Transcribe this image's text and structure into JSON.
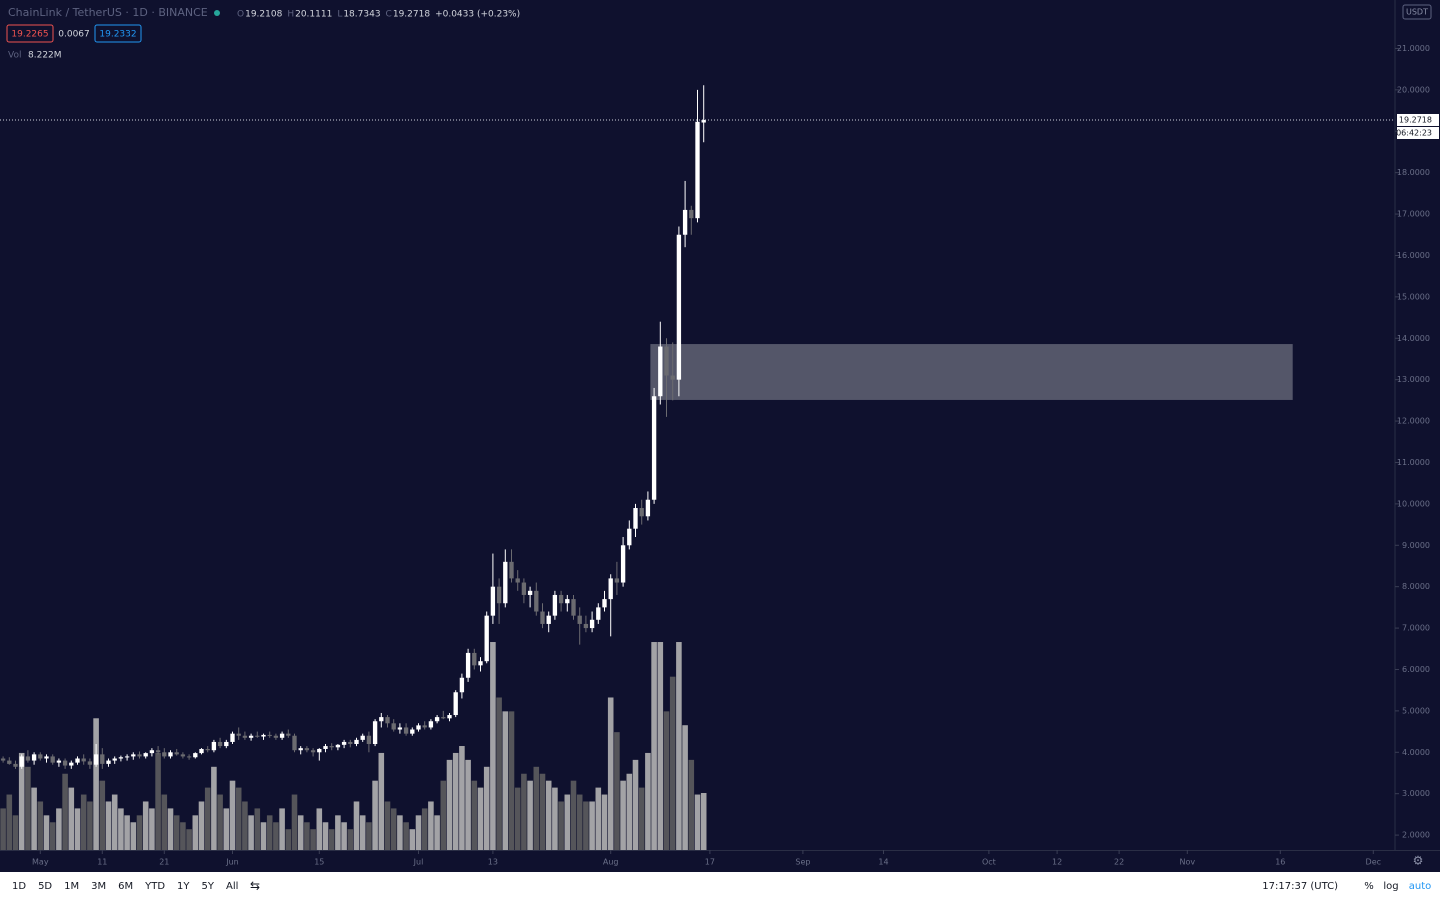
{
  "header": {
    "symbol": "ChainLink / TetherUS · 1D · BINANCE",
    "ohlc": [
      {
        "label": "O",
        "value": "19.2108"
      },
      {
        "label": "H",
        "value": "20.1111"
      },
      {
        "label": "L",
        "value": "18.7343"
      },
      {
        "label": "C",
        "value": "19.2718"
      }
    ],
    "change": "+0.0433 (+0.23%)",
    "bid": "19.2265",
    "spread": "0.0067",
    "ask": "19.2332",
    "vol_label": "Vol",
    "vol_value": "8.222M",
    "currency": "USDT"
  },
  "toolbar": {
    "ranges": [
      "1D",
      "5D",
      "1M",
      "3M",
      "6M",
      "YTD",
      "1Y",
      "5Y",
      "All"
    ],
    "clock": "17:17:37 (UTC)",
    "options": [
      "%",
      "log",
      "auto"
    ]
  },
  "chart_data": {
    "type": "candlestick",
    "up_color": "#ffffff",
    "down_color": "#6b6b70",
    "volume_up_color": "#a3a3a6",
    "volume_down_color": "#55555a",
    "xlim": [
      -0.5,
      224.5
    ],
    "xticks": [
      {
        "value": 6,
        "label": "May"
      },
      {
        "value": 16,
        "label": "11"
      },
      {
        "value": 26,
        "label": "21"
      },
      {
        "value": 37,
        "label": "Jun"
      },
      {
        "value": 51,
        "label": "15"
      },
      {
        "value": 67,
        "label": "Jul"
      },
      {
        "value": 79,
        "label": "13"
      },
      {
        "value": 98,
        "label": "Aug"
      },
      {
        "value": 114,
        "label": "17"
      },
      {
        "value": 129,
        "label": "Sep"
      },
      {
        "value": 142,
        "label": "14"
      },
      {
        "value": 159,
        "label": "Oct"
      },
      {
        "value": 170,
        "label": "12"
      },
      {
        "value": 180,
        "label": "22"
      },
      {
        "value": 191,
        "label": "Nov"
      },
      {
        "value": 206,
        "label": "16"
      },
      {
        "value": 221,
        "label": "Dec"
      }
    ],
    "ylim": [
      1.64,
      22.17
    ],
    "yticks": [
      {
        "value": 2,
        "label": "2.0000"
      },
      {
        "value": 3,
        "label": "3.0000"
      },
      {
        "value": 4,
        "label": "4.0000"
      },
      {
        "value": 5,
        "label": "5.0000"
      },
      {
        "value": 6,
        "label": "6.0000"
      },
      {
        "value": 7,
        "label": "7.0000"
      },
      {
        "value": 8,
        "label": "8.0000"
      },
      {
        "value": 9,
        "label": "9.0000"
      },
      {
        "value": 10,
        "label": "10.0000"
      },
      {
        "value": 11,
        "label": "11.0000"
      },
      {
        "value": 12,
        "label": "12.0000"
      },
      {
        "value": 13,
        "label": "13.0000"
      },
      {
        "value": 14,
        "label": "14.0000"
      },
      {
        "value": 15,
        "label": "15.0000"
      },
      {
        "value": 16,
        "label": "16.0000"
      },
      {
        "value": 17,
        "label": "17.0000"
      },
      {
        "value": 18,
        "label": "18.0000"
      },
      {
        "value": 19,
        "label": "19.0000"
      },
      {
        "value": 20,
        "label": "20.0000"
      },
      {
        "value": 21,
        "label": "21.0000"
      }
    ],
    "last_price": 19.2718,
    "countdown": "06:42:23",
    "zone": {
      "x": [
        104.4,
        208
      ],
      "y": [
        12.51,
        13.86
      ]
    },
    "ohlc": [
      [
        3.85,
        3.9,
        3.75,
        3.8
      ],
      [
        3.8,
        3.88,
        3.7,
        3.72
      ],
      [
        3.72,
        3.8,
        3.6,
        3.65
      ],
      [
        3.65,
        3.95,
        3.6,
        3.9
      ],
      [
        3.9,
        4.05,
        3.75,
        3.8
      ],
      [
        3.8,
        4.0,
        3.7,
        3.95
      ],
      [
        3.95,
        4.0,
        3.8,
        3.85
      ],
      [
        3.85,
        3.95,
        3.75,
        3.9
      ],
      [
        3.9,
        3.95,
        3.7,
        3.75
      ],
      [
        3.75,
        3.85,
        3.65,
        3.8
      ],
      [
        3.8,
        3.85,
        3.6,
        3.68
      ],
      [
        3.68,
        3.8,
        3.6,
        3.75
      ],
      [
        3.75,
        3.9,
        3.7,
        3.85
      ],
      [
        3.85,
        3.95,
        3.7,
        3.78
      ],
      [
        3.78,
        3.85,
        3.6,
        3.7
      ],
      [
        3.7,
        4.2,
        3.65,
        3.95
      ],
      [
        3.95,
        4.1,
        3.6,
        3.72
      ],
      [
        3.72,
        3.85,
        3.65,
        3.8
      ],
      [
        3.8,
        3.9,
        3.72,
        3.85
      ],
      [
        3.85,
        3.92,
        3.78,
        3.88
      ],
      [
        3.88,
        3.95,
        3.8,
        3.9
      ],
      [
        3.9,
        4.0,
        3.82,
        3.95
      ],
      [
        3.95,
        4.02,
        3.85,
        3.9
      ],
      [
        3.9,
        4.0,
        3.85,
        3.98
      ],
      [
        3.98,
        4.1,
        3.9,
        4.05
      ],
      [
        4.05,
        4.15,
        3.95,
        4.0
      ],
      [
        4.0,
        4.1,
        3.85,
        3.9
      ],
      [
        3.9,
        4.05,
        3.85,
        4.0
      ],
      [
        4.0,
        4.08,
        3.92,
        3.95
      ],
      [
        3.95,
        4.0,
        3.85,
        3.9
      ],
      [
        3.9,
        3.95,
        3.82,
        3.88
      ],
      [
        3.88,
        4.0,
        3.85,
        3.98
      ],
      [
        3.98,
        4.1,
        3.95,
        4.08
      ],
      [
        4.08,
        4.15,
        4.0,
        4.05
      ],
      [
        4.05,
        4.3,
        4.0,
        4.25
      ],
      [
        4.25,
        4.35,
        4.1,
        4.15
      ],
      [
        4.15,
        4.3,
        4.1,
        4.25
      ],
      [
        4.25,
        4.5,
        4.2,
        4.45
      ],
      [
        4.45,
        4.6,
        4.3,
        4.4
      ],
      [
        4.4,
        4.5,
        4.3,
        4.35
      ],
      [
        4.35,
        4.45,
        4.28,
        4.4
      ],
      [
        4.4,
        4.5,
        4.35,
        4.38
      ],
      [
        4.38,
        4.45,
        4.3,
        4.42
      ],
      [
        4.42,
        4.5,
        4.35,
        4.4
      ],
      [
        4.4,
        4.45,
        4.3,
        4.35
      ],
      [
        4.35,
        4.5,
        4.3,
        4.45
      ],
      [
        4.45,
        4.55,
        4.35,
        4.4
      ],
      [
        4.4,
        4.45,
        4.0,
        4.05
      ],
      [
        4.05,
        4.15,
        3.95,
        4.1
      ],
      [
        4.1,
        4.15,
        4.0,
        4.05
      ],
      [
        4.05,
        4.1,
        3.9,
        4.0
      ],
      [
        4.0,
        4.1,
        3.8,
        4.08
      ],
      [
        4.08,
        4.2,
        4.0,
        4.15
      ],
      [
        4.15,
        4.22,
        4.05,
        4.12
      ],
      [
        4.12,
        4.2,
        4.05,
        4.18
      ],
      [
        4.18,
        4.3,
        4.1,
        4.25
      ],
      [
        4.25,
        4.3,
        4.12,
        4.2
      ],
      [
        4.2,
        4.35,
        4.15,
        4.3
      ],
      [
        4.3,
        4.45,
        4.25,
        4.4
      ],
      [
        4.4,
        4.5,
        4.0,
        4.2
      ],
      [
        4.2,
        4.8,
        4.15,
        4.75
      ],
      [
        4.75,
        4.95,
        4.6,
        4.85
      ],
      [
        4.85,
        4.9,
        4.6,
        4.7
      ],
      [
        4.7,
        4.8,
        4.5,
        4.55
      ],
      [
        4.55,
        4.7,
        4.45,
        4.6
      ],
      [
        4.6,
        4.7,
        4.4,
        4.45
      ],
      [
        4.45,
        4.6,
        4.4,
        4.55
      ],
      [
        4.55,
        4.7,
        4.5,
        4.65
      ],
      [
        4.65,
        4.75,
        4.55,
        4.6
      ],
      [
        4.6,
        4.8,
        4.55,
        4.75
      ],
      [
        4.75,
        4.9,
        4.7,
        4.85
      ],
      [
        4.85,
        5.0,
        4.8,
        4.82
      ],
      [
        4.82,
        4.95,
        4.75,
        4.9
      ],
      [
        4.9,
        5.5,
        4.85,
        5.45
      ],
      [
        5.45,
        5.9,
        5.3,
        5.8
      ],
      [
        5.8,
        6.5,
        5.7,
        6.4
      ],
      [
        6.4,
        6.5,
        6.0,
        6.1
      ],
      [
        6.1,
        6.3,
        5.95,
        6.2
      ],
      [
        6.2,
        7.4,
        6.15,
        7.3
      ],
      [
        7.3,
        8.8,
        7.1,
        8.0
      ],
      [
        8.0,
        8.2,
        7.1,
        7.6
      ],
      [
        7.6,
        8.9,
        7.5,
        8.6
      ],
      [
        8.6,
        8.9,
        8.1,
        8.2
      ],
      [
        8.2,
        8.4,
        7.9,
        8.1
      ],
      [
        8.1,
        8.2,
        7.6,
        7.8
      ],
      [
        7.8,
        8.0,
        7.5,
        7.9
      ],
      [
        7.9,
        8.1,
        7.3,
        7.4
      ],
      [
        7.4,
        7.6,
        7.0,
        7.1
      ],
      [
        7.1,
        7.4,
        6.9,
        7.3
      ],
      [
        7.3,
        7.9,
        7.2,
        7.8
      ],
      [
        7.8,
        7.9,
        7.4,
        7.6
      ],
      [
        7.6,
        7.8,
        7.4,
        7.7
      ],
      [
        7.7,
        7.8,
        7.2,
        7.3
      ],
      [
        7.3,
        7.5,
        6.6,
        7.1
      ],
      [
        7.1,
        7.3,
        6.9,
        7.0
      ],
      [
        7.0,
        7.4,
        6.9,
        7.2
      ],
      [
        7.2,
        7.6,
        7.1,
        7.5
      ],
      [
        7.5,
        7.9,
        7.4,
        7.7
      ],
      [
        7.7,
        8.3,
        6.8,
        8.2
      ],
      [
        8.2,
        8.6,
        7.8,
        8.1
      ],
      [
        8.1,
        9.2,
        8.0,
        9.0
      ],
      [
        9.0,
        9.6,
        8.9,
        9.4
      ],
      [
        9.4,
        10.0,
        9.2,
        9.9
      ],
      [
        9.9,
        10.1,
        9.5,
        9.7
      ],
      [
        9.7,
        10.3,
        9.6,
        10.1
      ],
      [
        10.1,
        12.8,
        10.0,
        12.6
      ],
      [
        12.6,
        14.4,
        12.4,
        13.8
      ],
      [
        13.8,
        14.0,
        12.1,
        13.1
      ],
      [
        13.1,
        13.9,
        12.5,
        13.0
      ],
      [
        13.0,
        16.7,
        12.6,
        16.5
      ],
      [
        16.5,
        17.8,
        16.2,
        17.1
      ],
      [
        17.1,
        17.2,
        16.5,
        16.9
      ],
      [
        16.9,
        20.0,
        16.8,
        19.2285
      ],
      [
        19.2108,
        20.1111,
        18.7343,
        19.2718
      ]
    ],
    "volume": [
      6,
      8,
      5,
      14,
      12,
      9,
      7,
      5,
      4,
      6,
      11,
      9,
      6,
      8,
      7,
      19,
      10,
      7,
      8,
      6,
      5,
      4,
      5,
      7,
      6,
      14,
      8,
      6,
      5,
      4,
      3,
      5,
      7,
      9,
      12,
      8,
      6,
      10,
      9,
      7,
      5,
      6,
      4,
      5,
      4,
      6,
      3,
      8,
      5,
      4,
      3,
      6,
      4,
      3,
      5,
      4,
      3,
      7,
      5,
      4,
      10,
      14,
      7,
      6,
      5,
      4,
      3,
      5,
      6,
      7,
      5,
      10,
      13,
      14,
      15,
      13,
      10,
      9,
      12,
      30,
      22,
      20,
      20,
      9,
      11,
      10,
      12,
      11,
      10,
      9,
      7,
      8,
      10,
      8,
      7,
      7,
      9,
      8,
      22,
      17,
      10,
      11,
      13,
      9,
      14,
      30,
      30,
      20,
      25,
      30,
      18,
      13,
      8,
      8.222
    ]
  }
}
